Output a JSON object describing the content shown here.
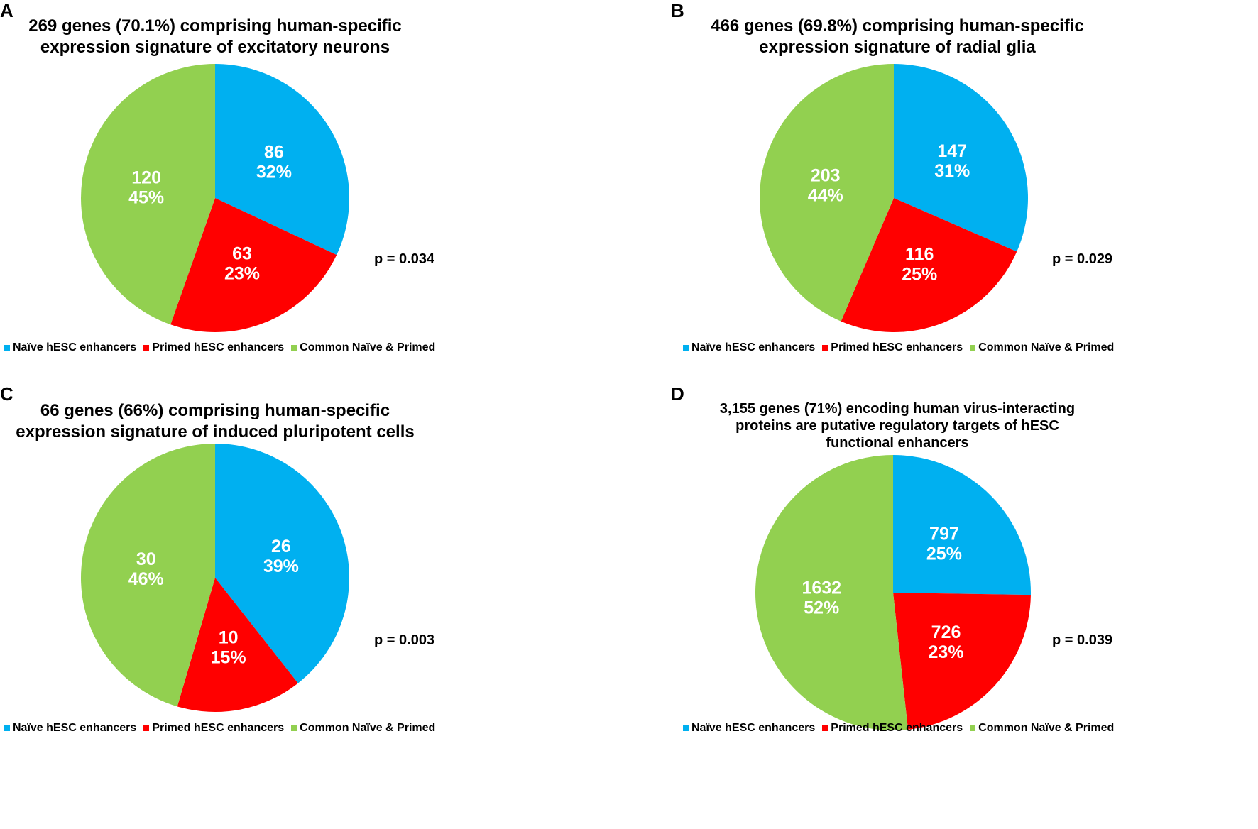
{
  "colors": {
    "naive": "#00B0F0",
    "primed": "#FF0000",
    "common": "#92D050"
  },
  "legend": [
    "Naïve hESC enhancers",
    "Primed hESC enhancers",
    "Common Naïve & Primed"
  ],
  "chart_data": [
    {
      "type": "pie",
      "panel": "A",
      "title_lines": [
        "269 genes (70.1%) comprising human-specific",
        "expression signature of excitatory neurons"
      ],
      "p_value": "p = 0.034",
      "slices": [
        {
          "category": "Naïve hESC enhancers",
          "value": 86,
          "percent": "32%"
        },
        {
          "category": "Primed hESC enhancers",
          "value": 63,
          "percent": "23%"
        },
        {
          "category": "Common Naïve & Primed",
          "value": 120,
          "percent": "45%"
        }
      ]
    },
    {
      "type": "pie",
      "panel": "B",
      "title_lines": [
        "466 genes (69.8%) comprising human-specific",
        "expression signature of radial glia"
      ],
      "p_value": "p = 0.029",
      "slices": [
        {
          "category": "Naïve hESC enhancers",
          "value": 147,
          "percent": "31%"
        },
        {
          "category": "Primed hESC enhancers",
          "value": 116,
          "percent": "25%"
        },
        {
          "category": "Common Naïve & Primed",
          "value": 203,
          "percent": "44%"
        }
      ]
    },
    {
      "type": "pie",
      "panel": "C",
      "title_lines": [
        "66 genes (66%) comprising human-specific",
        "expression signature of induced pluripotent cells"
      ],
      "p_value": "p = 0.003",
      "slices": [
        {
          "category": "Naïve hESC enhancers",
          "value": 26,
          "percent": "39%"
        },
        {
          "category": "Primed hESC enhancers",
          "value": 10,
          "percent": "15%"
        },
        {
          "category": "Common Naïve & Primed",
          "value": 30,
          "percent": "46%"
        }
      ]
    },
    {
      "type": "pie",
      "panel": "D",
      "title_lines": [
        "3,155 genes (71%) encoding human virus-interacting",
        "proteins are putative regulatory targets of hESC",
        "functional enhancers"
      ],
      "p_value": "p = 0.039",
      "slices": [
        {
          "category": "Naïve hESC enhancers",
          "value": 797,
          "percent": "25%"
        },
        {
          "category": "Primed hESC enhancers",
          "value": 726,
          "percent": "23%"
        },
        {
          "category": "Common Naïve & Primed",
          "value": 1632,
          "percent": "52%"
        }
      ]
    }
  ]
}
